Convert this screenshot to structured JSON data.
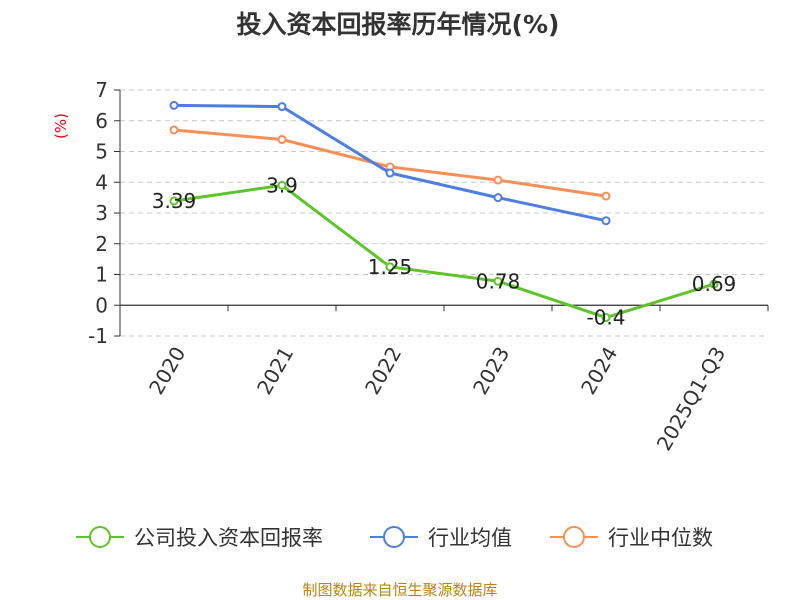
{
  "chart_data": {
    "type": "line",
    "title": "投入资本回报率历年情况(%)",
    "ylabel": "(%)",
    "categories": [
      "2020",
      "2021",
      "2022",
      "2023",
      "2024",
      "2025Q1-Q3"
    ],
    "ylim": [
      -1,
      7
    ],
    "yticks": [
      -1,
      0,
      1,
      2,
      3,
      4,
      5,
      6,
      7
    ],
    "grid": true,
    "legend_position": "bottom",
    "series": [
      {
        "name": "公司投入资本回报率",
        "color": "#5ec42b",
        "values": [
          3.39,
          3.9,
          1.25,
          0.78,
          -0.4,
          0.69
        ],
        "labels": [
          "3.39",
          "3.9",
          "1.25",
          "0.78",
          "-0.4",
          "0.69"
        ]
      },
      {
        "name": "行业均值",
        "color": "#4e7ee0",
        "values": [
          6.5,
          6.46,
          4.3,
          3.5,
          2.75,
          null
        ]
      },
      {
        "name": "行业中位数",
        "color": "#f79057",
        "values": [
          5.7,
          5.39,
          4.5,
          4.07,
          3.55,
          null
        ]
      }
    ]
  },
  "source": "制图数据来自恒生聚源数据库"
}
